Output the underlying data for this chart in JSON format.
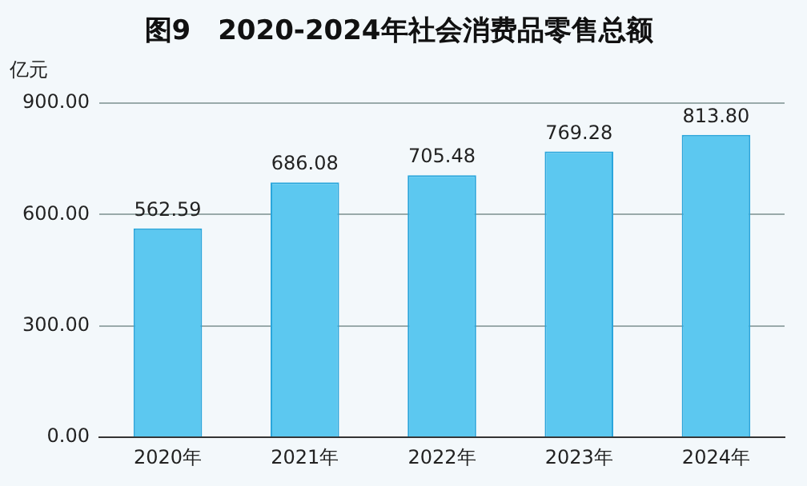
{
  "chart_data": {
    "type": "bar",
    "title": "图9　2020-2024年社会消费品零售总额",
    "ylabel": "亿元",
    "categories": [
      "2020年",
      "2021年",
      "2022年",
      "2023年",
      "2024年"
    ],
    "values": [
      562.59,
      686.08,
      705.48,
      769.28,
      813.8
    ],
    "value_labels": [
      "562.59",
      "686.08",
      "705.48",
      "769.28",
      "813.80"
    ],
    "color": "#5cc8f0",
    "ylim": [
      0,
      900
    ],
    "yticks": [
      {
        "value": 0,
        "label": "0.00"
      },
      {
        "value": 300,
        "label": "300.00"
      },
      {
        "value": 600,
        "label": "600.00"
      },
      {
        "value": 900,
        "label": "900.00"
      }
    ],
    "grid": "y",
    "legend": false
  }
}
